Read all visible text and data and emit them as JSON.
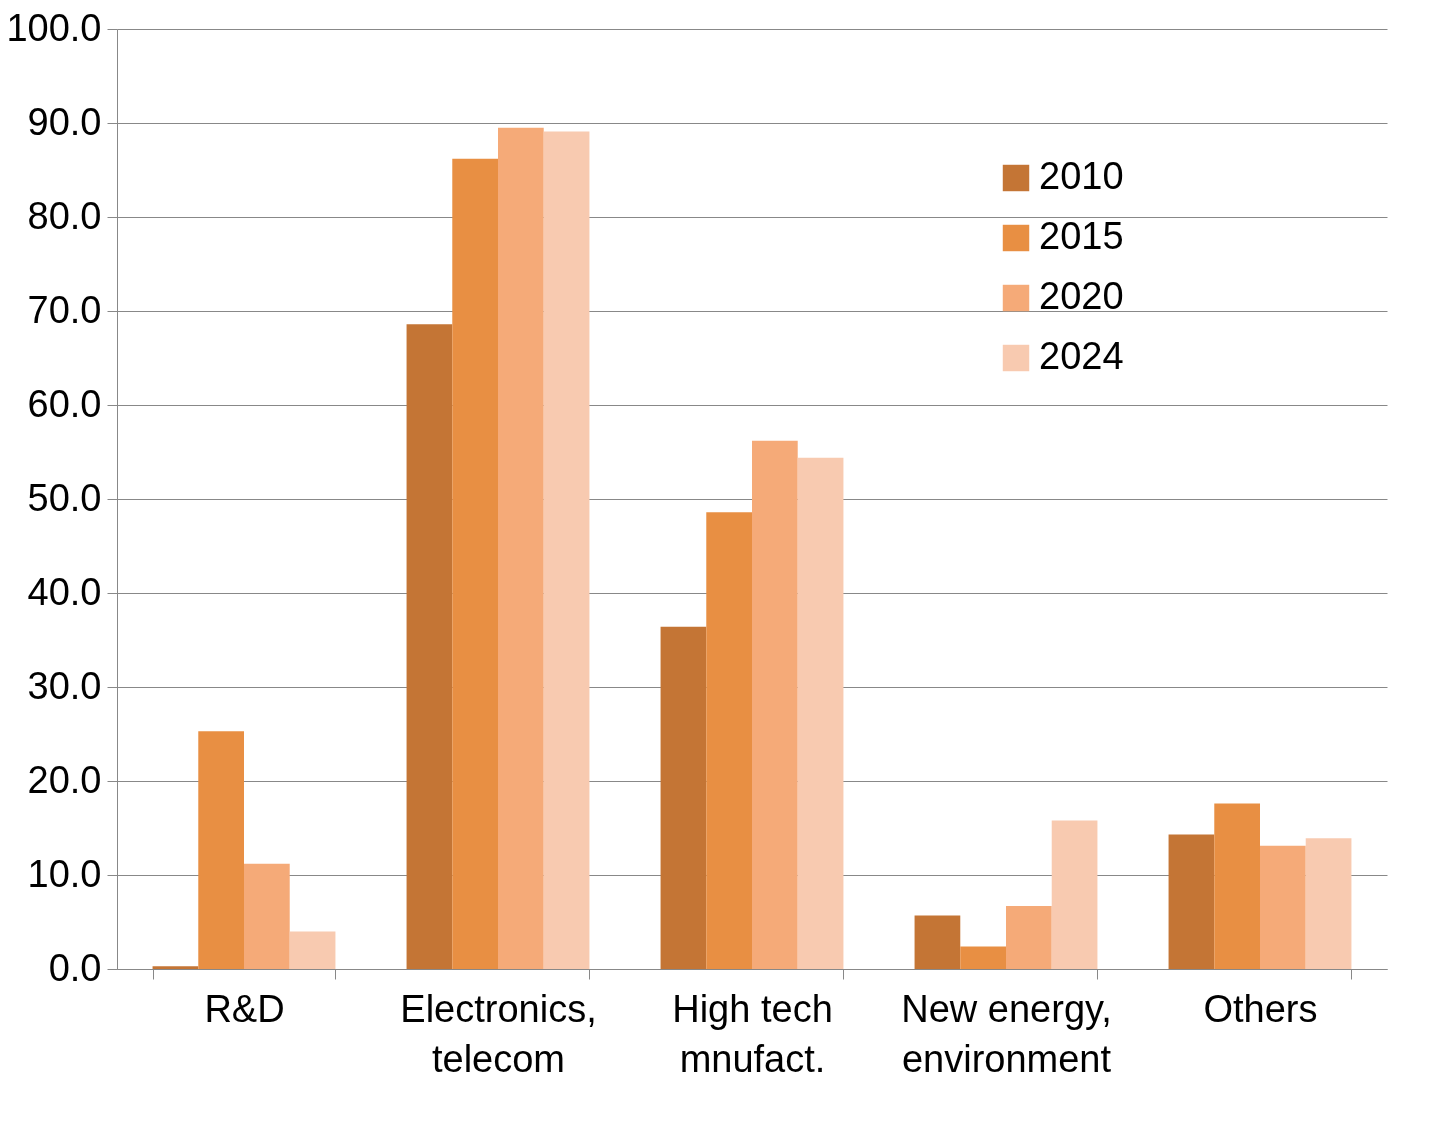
{
  "chart_data": {
    "type": "bar",
    "categories": [
      "R&D",
      "Electronics,\ntelecom",
      "High tech\nmnufact.",
      "New energy,\nenvironment",
      "Others"
    ],
    "series": [
      {
        "name": "2010",
        "color": "#c47535",
        "values": [
          0.3,
          68.6,
          36.4,
          5.7,
          14.3
        ]
      },
      {
        "name": "2015",
        "color": "#e88f43",
        "values": [
          25.3,
          86.2,
          48.6,
          2.4,
          17.6
        ]
      },
      {
        "name": "2020",
        "color": "#f5aa78",
        "values": [
          11.2,
          89.5,
          56.2,
          6.7,
          13.1
        ]
      },
      {
        "name": "2024",
        "color": "#f8cab0",
        "values": [
          4.0,
          89.1,
          54.4,
          15.8,
          13.9
        ]
      }
    ],
    "ylim": [
      0,
      100
    ],
    "yticks": [
      {
        "value": 0,
        "label": "0.0"
      },
      {
        "value": 10,
        "label": "10.0"
      },
      {
        "value": 20,
        "label": "20.0"
      },
      {
        "value": 30,
        "label": "30.0"
      },
      {
        "value": 40,
        "label": "40.0"
      },
      {
        "value": 50,
        "label": "50.0"
      },
      {
        "value": 60,
        "label": "60.0"
      },
      {
        "value": 70,
        "label": "70.0"
      },
      {
        "value": 80,
        "label": "80.0"
      },
      {
        "value": 90,
        "label": "90.0"
      },
      {
        "value": 100,
        "label": "100.0"
      }
    ],
    "grid": "y",
    "legend": "top right"
  }
}
